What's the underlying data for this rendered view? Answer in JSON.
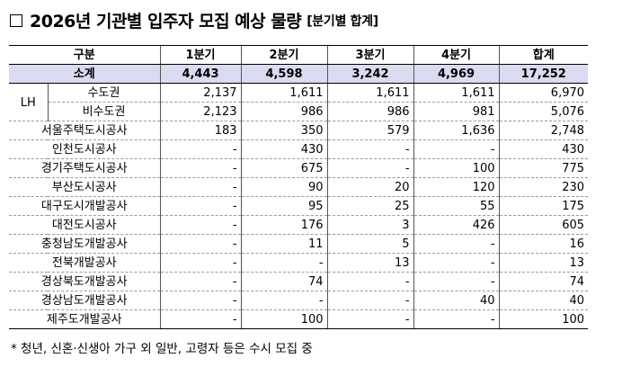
{
  "title": {
    "main": "2026년 기관별 입주자 모집 예상 물량",
    "sub": "[분기별 합계]"
  },
  "table": {
    "headers": [
      "구분",
      "1분기",
      "2분기",
      "3분기",
      "4분기",
      "합계"
    ],
    "subtotal": {
      "label": "소계",
      "values": [
        "4,443",
        "4,598",
        "3,242",
        "4,969",
        "17,252"
      ]
    },
    "lh_label": "LH",
    "lh_rows": [
      {
        "label": "수도권",
        "values": [
          "2,137",
          "1,611",
          "1,611",
          "1,611",
          "6,970"
        ]
      },
      {
        "label": "비수도권",
        "values": [
          "2,123",
          "986",
          "986",
          "981",
          "5,076"
        ]
      }
    ],
    "rows": [
      {
        "label": "서울주택도시공사",
        "values": [
          "183",
          "350",
          "579",
          "1,636",
          "2,748"
        ]
      },
      {
        "label": "인천도시공사",
        "values": [
          "-",
          "430",
          "-",
          "-",
          "430"
        ]
      },
      {
        "label": "경기주택도시공사",
        "values": [
          "-",
          "675",
          "-",
          "100",
          "775"
        ]
      },
      {
        "label": "부산도시공사",
        "values": [
          "-",
          "90",
          "20",
          "120",
          "230"
        ]
      },
      {
        "label": "대구도시개발공사",
        "values": [
          "-",
          "95",
          "25",
          "55",
          "175"
        ]
      },
      {
        "label": "대전도시공사",
        "values": [
          "-",
          "176",
          "3",
          "426",
          "605"
        ]
      },
      {
        "label": "충청남도개발공사",
        "values": [
          "-",
          "11",
          "5",
          "-",
          "16"
        ]
      },
      {
        "label": "전북개발공사",
        "values": [
          "-",
          "-",
          "13",
          "-",
          "13"
        ]
      },
      {
        "label": "경상북도개발공사",
        "values": [
          "-",
          "74",
          "-",
          "-",
          "74"
        ]
      },
      {
        "label": "경상남도개발공사",
        "values": [
          "-",
          "-",
          "-",
          "40",
          "40"
        ]
      },
      {
        "label": "제주도개발공사",
        "values": [
          "-",
          "100",
          "-",
          "-",
          "100"
        ]
      }
    ]
  },
  "footnote": "* 청년, 신혼·신생아 가구 외 일반, 고령자 등은 수시 모집 중",
  "colors": {
    "subtotal_bg": "#d9dbf1"
  }
}
